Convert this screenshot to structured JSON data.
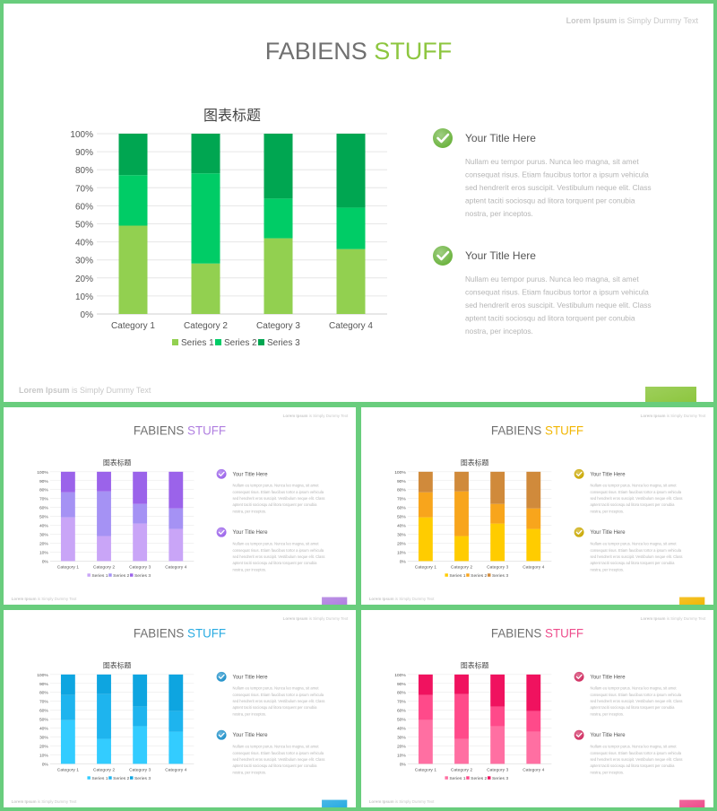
{
  "lorem_brand": "Lorem Ipsum",
  "lorem_rest": " is Simply Dummy Text",
  "title_a": "FABIENS ",
  "title_b": "STUFF",
  "item_title": "Your Title Here",
  "body_lines": [
    "Nullam eu tempor purus. Nunca leo magna, sit amet",
    "consequat risus. Etiam faucibus tortor a ipsum vehicula",
    "sed hendrerit eros suscipit. Vestibulum neque elit. Class",
    "aptent taciti sociosqu ad litora torquent per conubia",
    "nostra, per inceptos."
  ],
  "chart_data": {
    "type": "bar",
    "stacked": "percent",
    "title": "图表标题",
    "categories": [
      "Category 1",
      "Category 2",
      "Category 3",
      "Category 4"
    ],
    "series": [
      {
        "name": "Series 1",
        "values": [
          49,
          28,
          42,
          36
        ]
      },
      {
        "name": "Series 2",
        "values": [
          28,
          50,
          22,
          23
        ]
      },
      {
        "name": "Series 3",
        "values": [
          23,
          22,
          36,
          41
        ]
      }
    ],
    "yticks": [
      "0%",
      "10%",
      "20%",
      "30%",
      "40%",
      "50%",
      "60%",
      "70%",
      "80%",
      "90%",
      "100%"
    ],
    "ylim": [
      0,
      100
    ],
    "grid": true,
    "legend": "bottom"
  },
  "themes": {
    "green": {
      "accent": "#8dc63f",
      "series": [
        "#92d050",
        "#00cc66",
        "#00a651"
      ],
      "check": "#6cb33f"
    },
    "purple": {
      "accent": "#b07fe0",
      "series": [
        "#c9a5f7",
        "#a592f4",
        "#9b63ea"
      ],
      "check": "#9b63ea"
    },
    "orange": {
      "accent": "#f2b705",
      "series": [
        "#ffcc00",
        "#f8a51c",
        "#d08a3b"
      ],
      "check": "#c9a700"
    },
    "blue": {
      "accent": "#29abe2",
      "series": [
        "#33ccff",
        "#1eb4ee",
        "#0ea5e0"
      ],
      "check": "#1e90c9"
    },
    "pink": {
      "accent": "#ee4d8c",
      "series": [
        "#ff6fa2",
        "#ff4a8a",
        "#f0125f"
      ],
      "check": "#d02b5f"
    }
  }
}
